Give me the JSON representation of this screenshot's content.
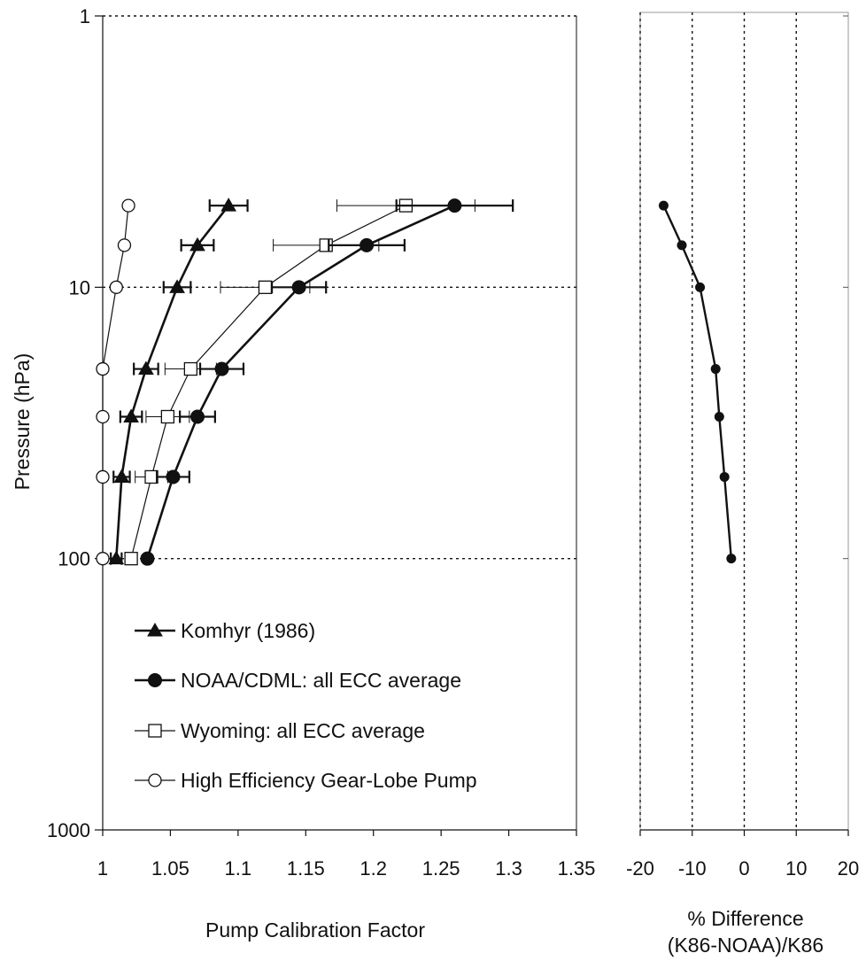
{
  "chart_data": [
    {
      "type": "line",
      "title": "",
      "xlabel": "Pump Calibration Factor",
      "ylabel": "Pressure (hPa)",
      "xlim": [
        1,
        1.35
      ],
      "ylim": [
        1000,
        1
      ],
      "y_scale": "log",
      "y_reversed": true,
      "x_ticks": [
        "1",
        "1.05",
        "1.1",
        "1.15",
        "1.2",
        "1.25",
        "1.3",
        "1.35"
      ],
      "y_ticks": [
        "1",
        "10",
        "100",
        "1000"
      ],
      "grid": "dotted horizontal lines at 1, 10, 100 hPa",
      "legend_position": "lower-left",
      "series": [
        {
          "name": "Komhyr (1986)",
          "marker": "filled-triangle",
          "line": "thick",
          "points": [
            {
              "x": 1.093,
              "y": 5,
              "xerr": 0.014
            },
            {
              "x": 1.07,
              "y": 7,
              "xerr": 0.012
            },
            {
              "x": 1.055,
              "y": 10,
              "xerr": 0.01
            },
            {
              "x": 1.032,
              "y": 20,
              "xerr": 0.009
            },
            {
              "x": 1.021,
              "y": 30,
              "xerr": 0.008
            },
            {
              "x": 1.014,
              "y": 50,
              "xerr": 0.006
            },
            {
              "x": 1.01,
              "y": 100,
              "xerr": 0.004
            }
          ]
        },
        {
          "name": "NOAA/CDML: all ECC average",
          "marker": "filled-circle",
          "line": "thick",
          "points": [
            {
              "x": 1.26,
              "y": 5,
              "xerr": 0.043
            },
            {
              "x": 1.195,
              "y": 7,
              "xerr": 0.028
            },
            {
              "x": 1.145,
              "y": 10,
              "xerr": 0.02
            },
            {
              "x": 1.088,
              "y": 20,
              "xerr": 0.016
            },
            {
              "x": 1.07,
              "y": 30,
              "xerr": 0.013
            },
            {
              "x": 1.052,
              "y": 50,
              "xerr": 0.012
            },
            {
              "x": 1.033,
              "y": 100,
              "xerr": 0.0
            }
          ]
        },
        {
          "name": "Wyoming: all ECC average",
          "marker": "open-square",
          "line": "thin",
          "points": [
            {
              "x": 1.224,
              "y": 5,
              "xerr": 0.051
            },
            {
              "x": 1.165,
              "y": 7,
              "xerr": 0.039
            },
            {
              "x": 1.12,
              "y": 10,
              "xerr": 0.033
            },
            {
              "x": 1.065,
              "y": 20,
              "xerr": 0.019
            },
            {
              "x": 1.048,
              "y": 30,
              "xerr": 0.016
            },
            {
              "x": 1.036,
              "y": 50,
              "xerr": 0.012
            },
            {
              "x": 1.021,
              "y": 100,
              "xerr": 0.0
            }
          ]
        },
        {
          "name": "High Efficiency Gear-Lobe Pump",
          "marker": "open-circle",
          "line": "thin",
          "points": [
            {
              "x": 1.019,
              "y": 5
            },
            {
              "x": 1.016,
              "y": 7
            },
            {
              "x": 1.01,
              "y": 10
            },
            {
              "x": 1.0,
              "y": 20
            },
            {
              "x": 1.0,
              "y": 30
            },
            {
              "x": 1.0,
              "y": 50
            },
            {
              "x": 1.0,
              "y": 100
            }
          ]
        }
      ]
    },
    {
      "type": "line",
      "title": "",
      "xlabel": "% Difference",
      "xlabel_line2": "(K86-NOAA)/K86",
      "ylabel": "",
      "xlim": [
        -20,
        20
      ],
      "ylim": [
        1000,
        1
      ],
      "y_scale": "log",
      "y_reversed": true,
      "x_ticks": [
        "-20",
        "-10",
        "0",
        "10",
        "20"
      ],
      "grid": "dotted vertical lines at -20, -10, 0, 10",
      "series": [
        {
          "marker": "filled-circle",
          "points": [
            {
              "x": -15.5,
              "y": 5
            },
            {
              "x": -12,
              "y": 7
            },
            {
              "x": -8.5,
              "y": 10
            },
            {
              "x": -5.5,
              "y": 20
            },
            {
              "x": -4.8,
              "y": 30
            },
            {
              "x": -3.8,
              "y": 50
            },
            {
              "x": -2.5,
              "y": 100
            }
          ]
        }
      ]
    }
  ]
}
